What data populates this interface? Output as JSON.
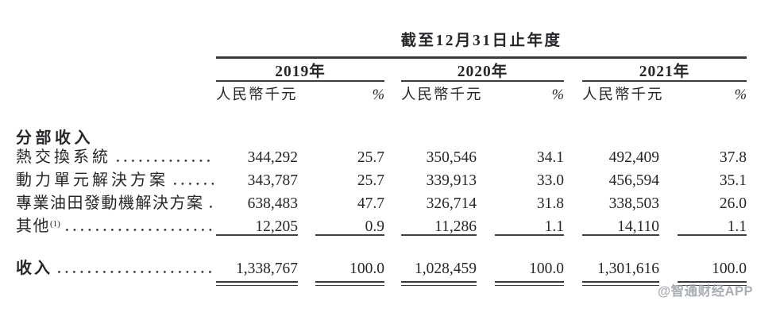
{
  "colors": {
    "text": "#26262b",
    "rule": "#3a3a3f",
    "watermark_gray": "#969ba3"
  },
  "header": {
    "period_title": "截至12月31日止年度",
    "years": [
      "2019年",
      "2020年",
      "2021年"
    ],
    "unit_label": "人民幣千元",
    "percent_label": "%"
  },
  "section_label": "分部收入",
  "rows": [
    {
      "label": "熱交換系統",
      "values": [
        "344,292",
        "25.7",
        "350,546",
        "34.1",
        "492,409",
        "37.8"
      ]
    },
    {
      "label": "動力單元解決方案",
      "values": [
        "343,787",
        "25.7",
        "339,913",
        "33.0",
        "456,594",
        "35.1"
      ]
    },
    {
      "label": "專業油田發動機解決方案",
      "values": [
        "638,483",
        "47.7",
        "326,714",
        "31.8",
        "338,503",
        "26.0"
      ]
    },
    {
      "label": "其他",
      "footnote": "(1)",
      "values": [
        "12,205",
        "0.9",
        "11,286",
        "1.1",
        "14,110",
        "1.1"
      ]
    }
  ],
  "total": {
    "label": "收入",
    "values": [
      "1,338,767",
      "100.0",
      "1,028,459",
      "100.0",
      "1,301,616",
      "100.0"
    ]
  },
  "watermark": "@智通财经APP"
}
